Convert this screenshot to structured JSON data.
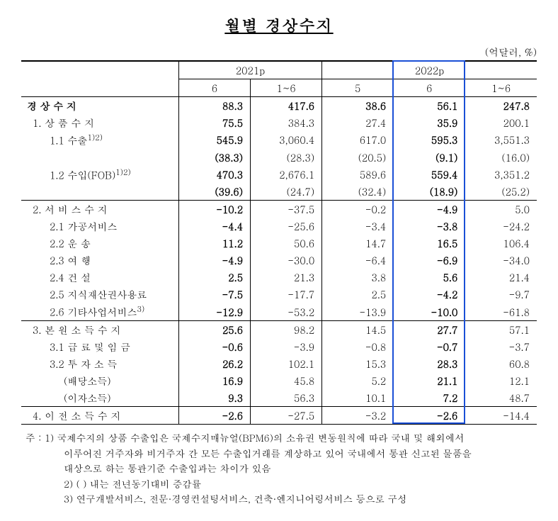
{
  "title": "월별 경상수지",
  "unit": "(억달러, %)",
  "header": {
    "y2021": "2021p",
    "y2022": "2022p",
    "c21_6": "6",
    "c21_1_6": "1~6",
    "c22_5": "5",
    "c22_6": "6",
    "c22_1_6": "1~6"
  },
  "rows": {
    "r0": {
      "label": "경 상 수 지",
      "v": [
        "88.3",
        "417.6",
        "38.6",
        "56.1",
        "247.8"
      ],
      "bold": true
    },
    "r1": {
      "label": "1. 상 품 수 지",
      "v": [
        "75.5",
        "384.3",
        "27.4",
        "35.9",
        "200.1"
      ]
    },
    "r2": {
      "label": "1.1 수출",
      "sup": "1)2)",
      "v": [
        "545.9",
        "3,060.4",
        "617.0",
        "595.3",
        "3,551.3"
      ]
    },
    "r2b": {
      "label": "",
      "v": [
        "(38.3)",
        "(28.3)",
        "(20.5)",
        "(9.1)",
        "(16.0)"
      ]
    },
    "r3": {
      "label": "1.2 수입(FOB)",
      "sup": "1)2)",
      "v": [
        "470.3",
        "2,676.1",
        "589.6",
        "559.4",
        "3,351.2"
      ]
    },
    "r3b": {
      "label": "",
      "v": [
        "(39.6)",
        "(24.7)",
        "(32.4)",
        "(18.9)",
        "(25.2)"
      ]
    },
    "r4": {
      "label": "2. 서 비 스 수 지",
      "v": [
        "-10.2",
        "-37.5",
        "-0.2",
        "-4.9",
        "5.0"
      ]
    },
    "r5": {
      "label": "2.1 가공서비스",
      "v": [
        "-4.4",
        "-25.6",
        "-3.4",
        "-3.8",
        "-24.2"
      ]
    },
    "r6": {
      "label": "2.2 운      송",
      "v": [
        "11.2",
        "50.6",
        "14.7",
        "16.5",
        "106.4"
      ]
    },
    "r7": {
      "label": "2.3 여      행",
      "v": [
        "-4.9",
        "-30.0",
        "-6.4",
        "-6.9",
        "-34.0"
      ]
    },
    "r8": {
      "label": "2.4 건      설",
      "v": [
        "2.5",
        "21.3",
        "3.8",
        "5.6",
        "21.4"
      ]
    },
    "r9": {
      "label": "2.5 지식재산권사용료",
      "v": [
        "-7.5",
        "-17.7",
        "2.5",
        "-4.2",
        "-9.7"
      ]
    },
    "r10": {
      "label": "2.6 기타사업서비스",
      "sup": "3)",
      "v": [
        "-12.9",
        "-53.2",
        "-13.9",
        "-10.0",
        "-61.8"
      ]
    },
    "r11": {
      "label": "3. 본 원 소 득 수 지",
      "v": [
        "25.6",
        "98.2",
        "14.5",
        "27.7",
        "57.1"
      ]
    },
    "r12": {
      "label": "3.1 급 료 및 임 금",
      "v": [
        "-0.6",
        "-3.9",
        "-0.8",
        "-0.7",
        "-3.7"
      ]
    },
    "r13": {
      "label": "3.2 투 자 소 득",
      "v": [
        "26.2",
        "102.1",
        "15.3",
        "28.3",
        "60.8"
      ]
    },
    "r14": {
      "label": "(배당소득)",
      "v": [
        "16.9",
        "45.8",
        "5.2",
        "21.1",
        "12.1"
      ]
    },
    "r15": {
      "label": "(이자소득)",
      "v": [
        "9.3",
        "56.3",
        "10.1",
        "7.2",
        "48.7"
      ]
    },
    "r16": {
      "label": "4. 이 전 소 득 수 지",
      "v": [
        "-2.6",
        "-27.5",
        "-3.2",
        "-2.6",
        "-14.4"
      ]
    }
  },
  "footnotes": {
    "prefix": "주 :",
    "f1a": "1) 국제수지의 상품 수출입은 국제수지매뉴얼(BPM6)의 소유권 변동원칙에 따라 국내 및 해외에서",
    "f1b": "이루어진 거주자와 비거주자 간 모든 수출입거래를 계상하고 있어 국내에서 통관 신고된 물품을",
    "f1c": "대상으로 하는 통관기준 수출입과는 차이가 있음",
    "f2": "2) (  ) 내는 전년동기대비 증감률",
    "f3": "3) 연구개발서비스, 전문·경영컨설팅서비스, 건축·엔지니어링서비스 등으로 구성"
  },
  "style": {
    "highlight_color": "#1a4fd6",
    "text_color": "#000000",
    "background": "#ffffff"
  }
}
